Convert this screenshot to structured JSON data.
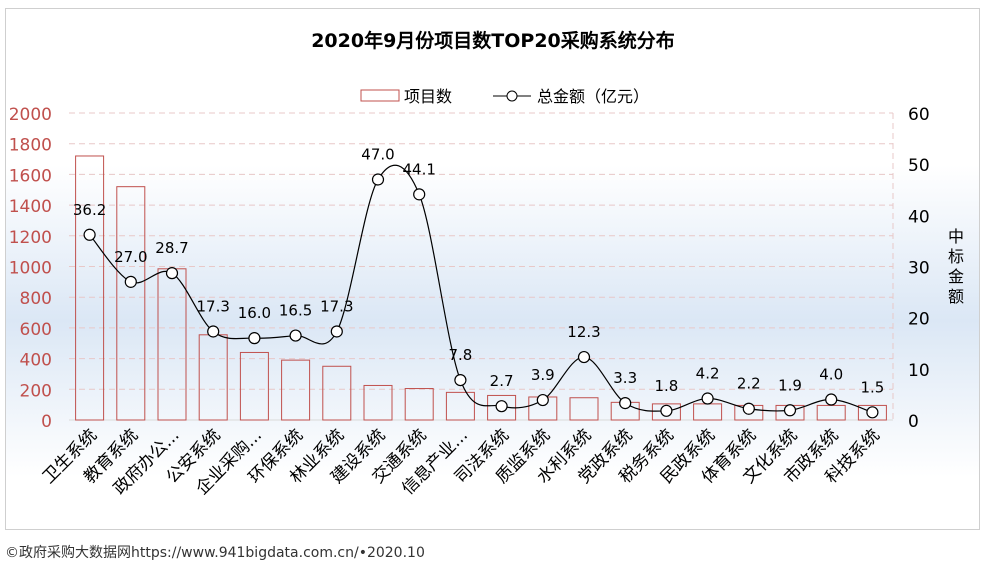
{
  "footer": {
    "credit": "©政府采购大数据网https://www.941bigdata.com.cn/•2020.10"
  },
  "chart_data": {
    "type": "bar",
    "title": "2020年9月份项目数TOP20采购系统分布",
    "categories": [
      "卫生系统",
      "教育系统",
      "政府办公...",
      "公安系统",
      "企业采购...",
      "环保系统",
      "林业系统",
      "建设系统",
      "交通系统",
      "信息产业...",
      "司法系统",
      "质监系统",
      "水利系统",
      "党政系统",
      "税务系统",
      "民政系统",
      "体育系统",
      "文化系统",
      "市政系统",
      "科技系统"
    ],
    "series": [
      {
        "name": "项目数",
        "type": "bar",
        "axis": "left",
        "color": "#c0504d",
        "values": [
          1720,
          1520,
          985,
          555,
          440,
          390,
          350,
          225,
          205,
          180,
          160,
          150,
          145,
          115,
          105,
          105,
          95,
          95,
          95,
          95
        ]
      },
      {
        "name": "总金额（亿元）",
        "type": "line",
        "axis": "right",
        "color": "#000000",
        "values": [
          36.2,
          27.0,
          28.7,
          17.3,
          16.0,
          16.5,
          17.3,
          47.0,
          44.1,
          7.8,
          2.7,
          3.9,
          12.3,
          3.3,
          1.8,
          4.2,
          2.2,
          1.9,
          4.0,
          1.5
        ],
        "labels": [
          "36.2",
          "27.0",
          "28.7",
          "17.3",
          "16.0",
          "16.5",
          "17.3",
          "47.0",
          "44.1",
          "7.8",
          "2.7",
          "3.9",
          "12.3",
          "3.3",
          "1.8",
          "4.2",
          "2.2",
          "1.9",
          "4.0",
          "1.5"
        ]
      }
    ],
    "y_left": {
      "min": 0,
      "max": 2000,
      "ticks": [
        0,
        200,
        400,
        600,
        800,
        1000,
        1200,
        1400,
        1600,
        1800,
        2000
      ],
      "tick_color": "#c0504d"
    },
    "y_right": {
      "min": 0,
      "max": 60,
      "ticks": [
        0,
        10,
        20,
        30,
        40,
        50,
        60
      ],
      "label": "中标金额"
    },
    "legend_position": "top-center",
    "grid": true
  }
}
